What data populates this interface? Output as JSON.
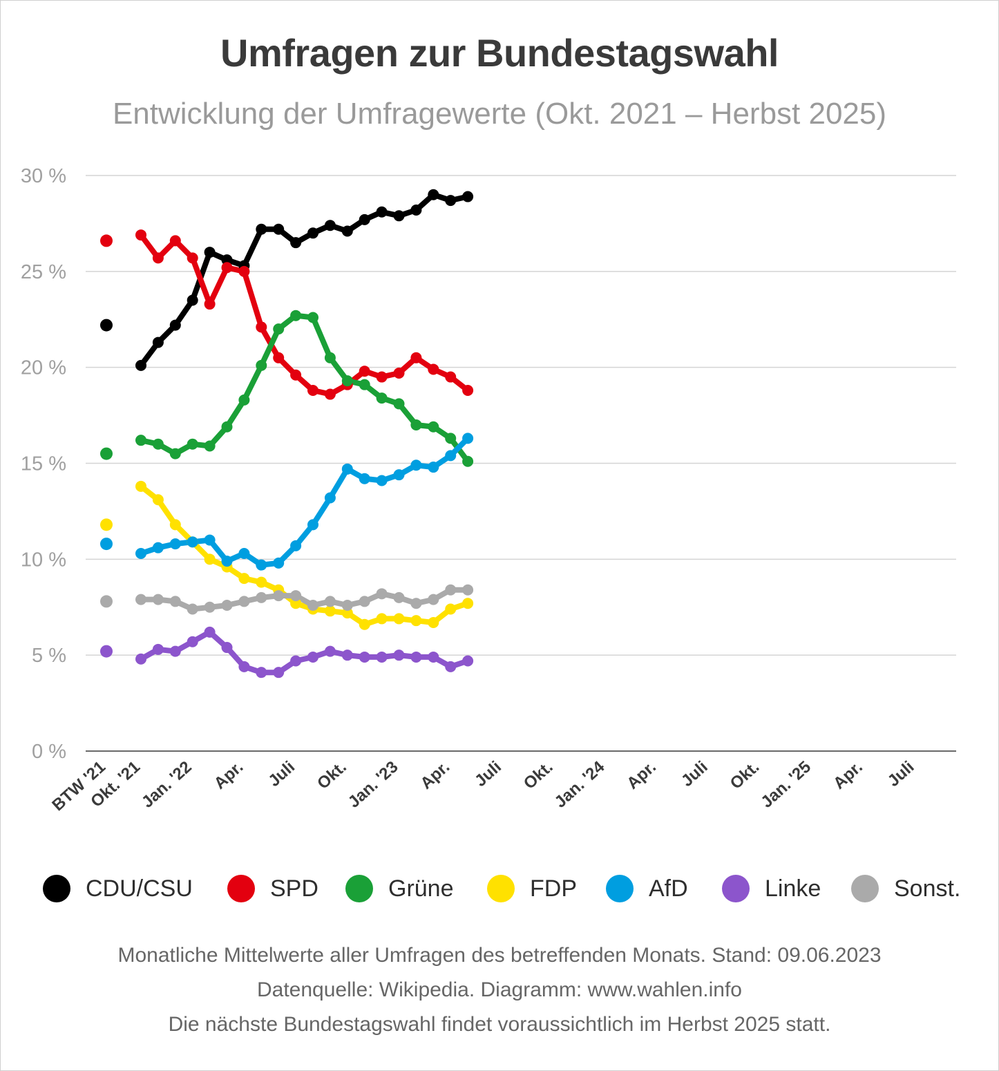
{
  "title": "Umfragen zur Bundestagswahl",
  "subtitle": "Entwicklung der Umfragewerte (Okt. 2021 – Herbst 2025)",
  "footer": {
    "line1": "Monatliche Mittelwerte aller Umfragen des betreffenden Monats. Stand: 09.06.2023",
    "line2": "Datenquelle: Wikipedia. Diagramm: www.wahlen.info",
    "line3": "Die nächste Bundestagswahl findet voraussichtlich im Herbst 2025 statt."
  },
  "legend": [
    {
      "name": "CDU/CSU",
      "color": "#000000"
    },
    {
      "name": "SPD",
      "color": "#e3000f"
    },
    {
      "name": "Grüne",
      "color": "#1aa037"
    },
    {
      "name": "FDP",
      "color": "#ffe100"
    },
    {
      "name": "AfD",
      "color": "#009ee0"
    },
    {
      "name": "Linke",
      "color": "#8c55cc"
    },
    {
      "name": "Sonst.",
      "color": "#aaaaaa"
    }
  ],
  "chart_data": {
    "type": "line",
    "ylim": [
      0,
      30
    ],
    "y_ticks": [
      0,
      5,
      10,
      15,
      20,
      25,
      30
    ],
    "y_tick_labels": [
      "0 %",
      "5 %",
      "10 %",
      "15 %",
      "20 %",
      "25 %",
      "30 %"
    ],
    "grid": true,
    "x_tick_labels": [
      "BTW '21",
      "Okt. '21",
      "Jan. '22",
      "Apr.",
      "Juli",
      "Okt.",
      "Jan. '23",
      "Apr.",
      "Juli",
      "Okt.",
      "Jan. '24",
      "Apr.",
      "Juli",
      "Okt.",
      "Jan. '25",
      "Apr.",
      "Juli"
    ],
    "months": [
      "Okt. 2021",
      "Nov. 2021",
      "Dez. 2021",
      "Jan. 2022",
      "Feb. 2022",
      "Mär. 2022",
      "Apr. 2022",
      "Mai 2022",
      "Jun. 2022",
      "Jul. 2022",
      "Aug. 2022",
      "Sep. 2022",
      "Okt. 2022",
      "Nov. 2022",
      "Dez. 2022",
      "Jan. 2023",
      "Feb. 2023",
      "Mär. 2023",
      "Apr. 2023",
      "Mai 2023",
      "Jun. 2023"
    ],
    "series": [
      {
        "name": "CDU/CSU",
        "color": "#000000",
        "election": 22.2,
        "values": [
          20.1,
          21.3,
          22.2,
          23.5,
          26.0,
          25.6,
          25.3,
          27.2,
          27.2,
          26.5,
          27.0,
          27.4,
          27.1,
          27.7,
          28.1,
          27.9,
          28.2,
          29.0,
          28.7,
          28.9,
          null
        ]
      },
      {
        "name": "SPD",
        "color": "#e3000f",
        "election": 26.6,
        "values": [
          26.9,
          25.7,
          26.6,
          25.7,
          23.3,
          25.2,
          25.0,
          22.1,
          20.5,
          19.6,
          18.8,
          18.6,
          19.1,
          19.8,
          19.5,
          19.7,
          20.5,
          19.9,
          19.5,
          18.8,
          null
        ]
      },
      {
        "name": "Grüne",
        "color": "#1aa037",
        "election": 15.5,
        "values": [
          16.2,
          16.0,
          15.5,
          16.0,
          15.9,
          16.9,
          18.3,
          20.1,
          22.0,
          22.7,
          22.6,
          20.5,
          19.3,
          19.1,
          18.4,
          18.1,
          17.0,
          16.9,
          16.3,
          15.1,
          null
        ]
      },
      {
        "name": "FDP",
        "color": "#ffe100",
        "election": 11.8,
        "values": [
          13.8,
          13.1,
          11.8,
          10.9,
          10.0,
          9.6,
          9.0,
          8.8,
          8.4,
          7.7,
          7.4,
          7.3,
          7.2,
          6.6,
          6.9,
          6.9,
          6.8,
          6.7,
          7.4,
          7.7,
          null
        ]
      },
      {
        "name": "AfD",
        "color": "#009ee0",
        "election": 10.8,
        "values": [
          10.3,
          10.6,
          10.8,
          10.9,
          11.0,
          9.9,
          10.3,
          9.7,
          9.8,
          10.7,
          11.8,
          13.2,
          14.7,
          14.2,
          14.1,
          14.4,
          14.9,
          14.8,
          15.4,
          16.3,
          null
        ]
      },
      {
        "name": "Linke",
        "color": "#8c55cc",
        "election": 5.2,
        "values": [
          4.8,
          5.3,
          5.2,
          5.7,
          6.2,
          5.4,
          4.4,
          4.1,
          4.1,
          4.7,
          4.9,
          5.2,
          5.0,
          4.9,
          4.9,
          5.0,
          4.9,
          4.9,
          4.4,
          4.7,
          null
        ]
      },
      {
        "name": "Sonst.",
        "color": "#aaaaaa",
        "election": 7.8,
        "values": [
          7.9,
          7.9,
          7.8,
          7.4,
          7.5,
          7.6,
          7.8,
          8.0,
          8.1,
          8.1,
          7.6,
          7.8,
          7.6,
          7.8,
          8.2,
          8.0,
          7.7,
          7.9,
          8.4,
          8.4,
          null
        ]
      }
    ]
  }
}
